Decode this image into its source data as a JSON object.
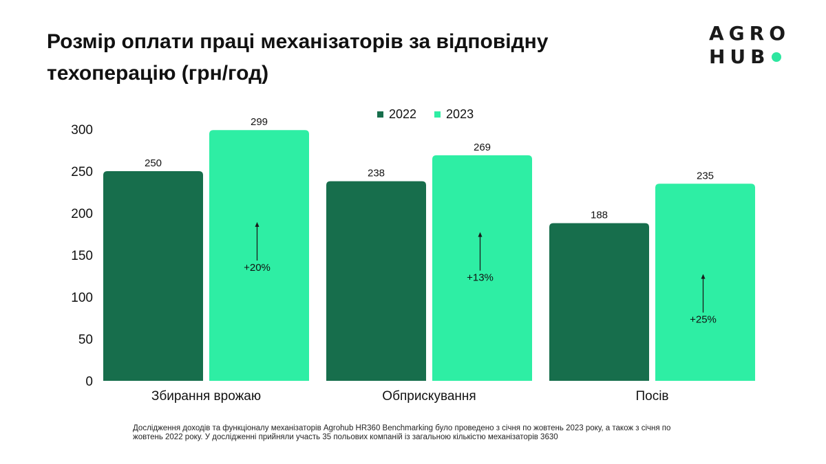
{
  "title": "Розмір оплати праці механізаторів за відповідну техоперацію (грн/год)",
  "logo": {
    "line1": "AGRO",
    "line2": "HUB"
  },
  "colors": {
    "2022": "#176e4c",
    "2023": "#2eeea4",
    "accent_dot": "#2ee6a0",
    "axis_text": "#111111"
  },
  "chart_data": {
    "type": "bar",
    "title": "Розмір оплати праці механізаторів за відповідну техоперацію (грн/год)",
    "categories": [
      "Збирання врожаю",
      "Обприскування",
      "Посів"
    ],
    "series": [
      {
        "name": "2022",
        "values": [
          250,
          238,
          188
        ]
      },
      {
        "name": "2023",
        "values": [
          299,
          269,
          235
        ]
      }
    ],
    "annotations": [
      "+20%",
      "+13%",
      "+25%"
    ],
    "ylim": [
      0,
      300
    ],
    "yticks": [
      "0",
      "50",
      "100",
      "150",
      "200",
      "250",
      "300"
    ],
    "ytick_values": [
      0,
      50,
      100,
      150,
      200,
      250,
      300
    ],
    "grid": false,
    "legend": "top-center",
    "xlabel": "",
    "ylabel": ""
  },
  "footnote": "Дослідження доходів та функціоналу механізаторів Agrohub HR360 Benchmarking було проведено з січня по жовтень 2023 року, а також з січня по жовтень 2022 року. У дослідженні прийняли участь 35 польових компаній із загальною кількістю механізаторів 3630"
}
